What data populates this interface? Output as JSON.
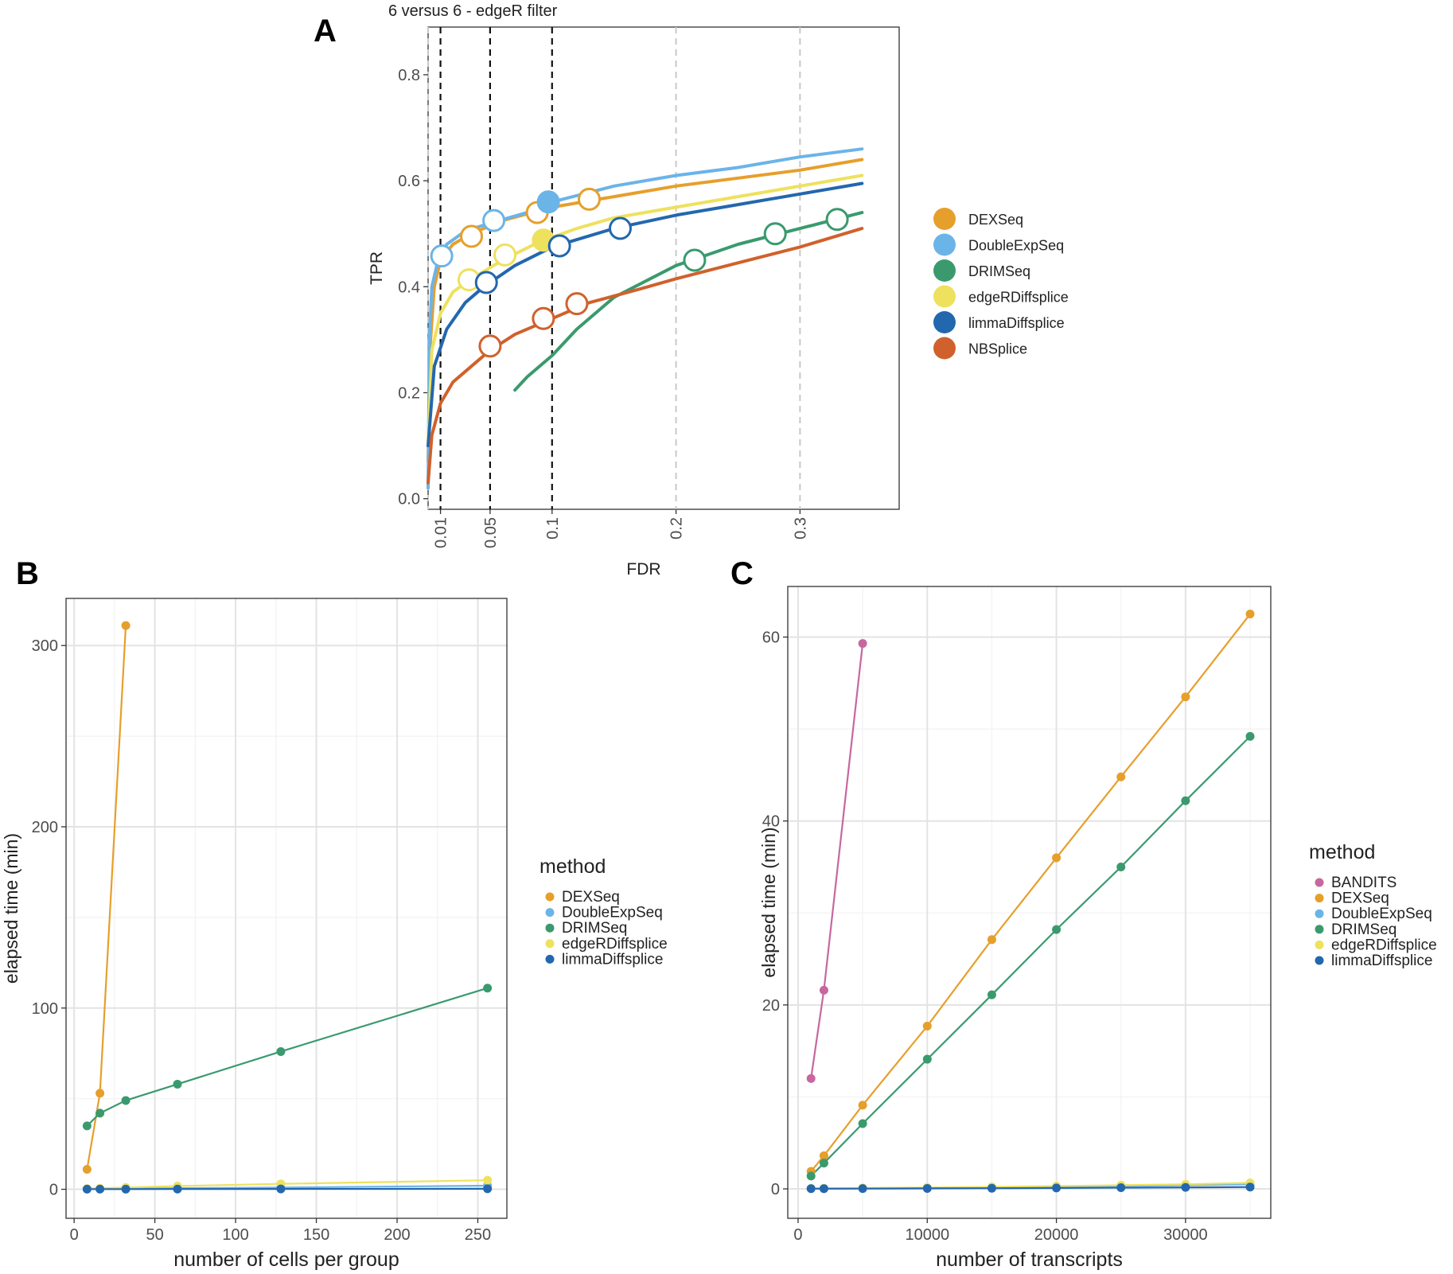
{
  "panel_letters": {
    "a": "A",
    "b": "B",
    "c": "C"
  },
  "chart_data": [
    {
      "type": "line",
      "panel": "A",
      "title": "6 versus 6 - edgeR filter",
      "xlabel": "FDR",
      "ylabel": "TPR",
      "xlim": [
        0,
        0.38
      ],
      "ylim": [
        -0.02,
        0.89
      ],
      "xticks": [
        0.01,
        0.05,
        0.1,
        0.2,
        0.3
      ],
      "xtick_labels": [
        "0.01",
        "0.05",
        "0.1",
        "0.2",
        "0.3"
      ],
      "yticks": [
        0.0,
        0.2,
        0.4,
        0.6,
        0.8
      ],
      "ytick_labels": [
        "0.0",
        "0.2",
        "0.4",
        "0.6",
        "0.8"
      ],
      "dashed_black_lines_x": [
        0.01,
        0.05,
        0.1
      ],
      "dashed_grey_lines_x": [
        0.0,
        0.2,
        0.3
      ],
      "grid": false,
      "legend_position": "right",
      "legend": [
        "DEXSeq",
        "DoubleExpSeq",
        "DRIMSeq",
        "edgeRDiffsplice",
        "limmaDiffsplice",
        "NBSplice"
      ],
      "series": [
        {
          "name": "DEXSeq",
          "color": "#E69F2B",
          "x": [
            0.0,
            0.002,
            0.005,
            0.01,
            0.02,
            0.035,
            0.06,
            0.1,
            0.15,
            0.2,
            0.25,
            0.3,
            0.35
          ],
          "y": [
            0.07,
            0.3,
            0.4,
            0.45,
            0.48,
            0.5,
            0.525,
            0.55,
            0.57,
            0.59,
            0.605,
            0.62,
            0.64
          ],
          "points": [
            {
              "x": 0.035,
              "y": 0.495,
              "filled": false
            },
            {
              "x": 0.088,
              "y": 0.54,
              "filled": false
            },
            {
              "x": 0.13,
              "y": 0.565,
              "filled": false
            }
          ]
        },
        {
          "name": "DoubleExpSeq",
          "color": "#6BB4E8",
          "x": [
            0.0,
            0.001,
            0.003,
            0.008,
            0.015,
            0.03,
            0.05,
            0.08,
            0.1,
            0.15,
            0.2,
            0.25,
            0.3,
            0.35
          ],
          "y": [
            0.02,
            0.3,
            0.4,
            0.45,
            0.48,
            0.505,
            0.52,
            0.54,
            0.56,
            0.59,
            0.61,
            0.625,
            0.645,
            0.66
          ],
          "points": [
            {
              "x": 0.011,
              "y": 0.458,
              "filled": false
            },
            {
              "x": 0.053,
              "y": 0.525,
              "filled": false
            },
            {
              "x": 0.097,
              "y": 0.56,
              "filled": true
            }
          ]
        },
        {
          "name": "DRIMSeq",
          "color": "#3A9A6E",
          "x": [
            0.07,
            0.08,
            0.1,
            0.12,
            0.15,
            0.2,
            0.25,
            0.3,
            0.35
          ],
          "y": [
            0.205,
            0.23,
            0.27,
            0.32,
            0.38,
            0.44,
            0.48,
            0.51,
            0.54
          ],
          "points": [
            {
              "x": 0.215,
              "y": 0.45,
              "filled": false
            },
            {
              "x": 0.28,
              "y": 0.5,
              "filled": false
            },
            {
              "x": 0.33,
              "y": 0.527,
              "filled": false
            }
          ]
        },
        {
          "name": "edgeRDiffsplice",
          "color": "#EEE15E",
          "x": [
            0.0,
            0.003,
            0.01,
            0.02,
            0.035,
            0.06,
            0.09,
            0.12,
            0.15,
            0.2,
            0.25,
            0.3,
            0.35
          ],
          "y": [
            0.1,
            0.28,
            0.35,
            0.39,
            0.415,
            0.45,
            0.485,
            0.51,
            0.53,
            0.55,
            0.57,
            0.59,
            0.61
          ],
          "points": [
            {
              "x": 0.033,
              "y": 0.413,
              "filled": false
            },
            {
              "x": 0.062,
              "y": 0.46,
              "filled": false
            },
            {
              "x": 0.093,
              "y": 0.488,
              "filled": true
            }
          ]
        },
        {
          "name": "limmaDiffsplice",
          "color": "#2367AE",
          "x": [
            0.0,
            0.005,
            0.015,
            0.03,
            0.045,
            0.07,
            0.1,
            0.15,
            0.2,
            0.25,
            0.3,
            0.35
          ],
          "y": [
            0.1,
            0.25,
            0.32,
            0.37,
            0.4,
            0.44,
            0.475,
            0.51,
            0.535,
            0.555,
            0.575,
            0.595
          ],
          "points": [
            {
              "x": 0.047,
              "y": 0.408,
              "filled": false
            },
            {
              "x": 0.106,
              "y": 0.477,
              "filled": false
            },
            {
              "x": 0.155,
              "y": 0.51,
              "filled": false
            }
          ]
        },
        {
          "name": "NBSplice",
          "color": "#D0612C",
          "x": [
            0.0,
            0.003,
            0.01,
            0.02,
            0.035,
            0.05,
            0.07,
            0.1,
            0.13,
            0.17,
            0.2,
            0.25,
            0.3,
            0.35
          ],
          "y": [
            0.03,
            0.12,
            0.18,
            0.22,
            0.25,
            0.28,
            0.31,
            0.34,
            0.37,
            0.395,
            0.415,
            0.445,
            0.475,
            0.51
          ],
          "points": [
            {
              "x": 0.05,
              "y": 0.288,
              "filled": false
            },
            {
              "x": 0.093,
              "y": 0.34,
              "filled": false
            },
            {
              "x": 0.12,
              "y": 0.368,
              "filled": false
            }
          ]
        }
      ]
    },
    {
      "type": "line",
      "panel": "B",
      "xlabel": "number of cells per group",
      "ylabel": "elapsed  time (min)",
      "xlim": [
        -5,
        268
      ],
      "ylim": [
        -16,
        326
      ],
      "xticks": [
        0,
        50,
        100,
        150,
        200,
        250
      ],
      "yticks": [
        0,
        100,
        200,
        300
      ],
      "grid": true,
      "legend_title": "method",
      "legend_position": "right",
      "series": [
        {
          "name": "DEXSeq",
          "color": "#E69F2B",
          "x": [
            8,
            16,
            32
          ],
          "y": [
            11,
            53,
            311
          ]
        },
        {
          "name": "DoubleExpSeq",
          "color": "#6BB4E8",
          "x": [
            8,
            16,
            32,
            64,
            128,
            256
          ],
          "y": [
            0.3,
            0.3,
            0.4,
            0.6,
            1.0,
            2.0
          ]
        },
        {
          "name": "DRIMSeq",
          "color": "#3A9A6E",
          "x": [
            8,
            16,
            32,
            64,
            128,
            256
          ],
          "y": [
            35,
            42,
            49,
            58,
            76,
            111
          ]
        },
        {
          "name": "edgeRDiffsplice",
          "color": "#EEE15E",
          "x": [
            8,
            16,
            32,
            64,
            128,
            256
          ],
          "y": [
            0.4,
            0.6,
            1.0,
            1.8,
            3.0,
            5.0
          ]
        },
        {
          "name": "limmaDiffsplice",
          "color": "#2367AE",
          "x": [
            8,
            16,
            32,
            64,
            128,
            256
          ],
          "y": [
            0.1,
            0.1,
            0.1,
            0.15,
            0.2,
            0.3
          ]
        }
      ]
    },
    {
      "type": "line",
      "panel": "C",
      "xlabel": "number of transcripts",
      "ylabel": "elapsed  time (min)",
      "xlim": [
        -800,
        36600
      ],
      "ylim": [
        -3.2,
        65.5
      ],
      "xticks": [
        0,
        10000,
        20000,
        30000
      ],
      "yticks": [
        0,
        20,
        40,
        60
      ],
      "grid": true,
      "legend_title": "method",
      "legend_position": "right",
      "series": [
        {
          "name": "BANDITS",
          "color": "#C7679F",
          "x": [
            1000,
            2000,
            5000
          ],
          "y": [
            12,
            21.6,
            59.3
          ]
        },
        {
          "name": "DEXSeq",
          "color": "#E69F2B",
          "x": [
            1000,
            2000,
            5000,
            10000,
            15000,
            20000,
            25000,
            30000,
            35000
          ],
          "y": [
            1.9,
            3.6,
            9.1,
            17.7,
            27.1,
            36.0,
            44.8,
            53.5,
            62.5
          ]
        },
        {
          "name": "DoubleExpSeq",
          "color": "#6BB4E8",
          "x": [
            1000,
            2000,
            5000,
            10000,
            15000,
            20000,
            25000,
            30000,
            35000
          ],
          "y": [
            0.05,
            0.05,
            0.08,
            0.12,
            0.18,
            0.25,
            0.32,
            0.4,
            0.5
          ]
        },
        {
          "name": "DRIMSeq",
          "color": "#3A9A6E",
          "x": [
            1000,
            2000,
            5000,
            10000,
            15000,
            20000,
            25000,
            30000,
            35000
          ],
          "y": [
            1.4,
            2.8,
            7.1,
            14.1,
            21.1,
            28.2,
            35.0,
            42.2,
            49.2
          ]
        },
        {
          "name": "edgeRDiffsplice",
          "color": "#EEE15E",
          "x": [
            1000,
            2000,
            5000,
            10000,
            15000,
            20000,
            25000,
            30000,
            35000
          ],
          "y": [
            0.05,
            0.06,
            0.1,
            0.15,
            0.22,
            0.3,
            0.4,
            0.5,
            0.65
          ]
        },
        {
          "name": "limmaDiffsplice",
          "color": "#2367AE",
          "x": [
            1000,
            2000,
            5000,
            10000,
            15000,
            20000,
            25000,
            30000,
            35000
          ],
          "y": [
            0.02,
            0.02,
            0.03,
            0.05,
            0.07,
            0.1,
            0.13,
            0.16,
            0.2
          ]
        }
      ]
    }
  ]
}
